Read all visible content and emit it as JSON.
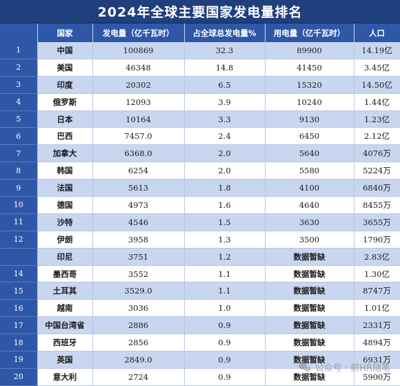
{
  "title": "2024年全球主要国家发电量排名",
  "headers": [
    "国家",
    "发电量（亿千瓦时）",
    "占全球总发电量%",
    "用电量（亿千瓦时）",
    "人口"
  ],
  "rows": [
    {
      "rank": "1",
      "country": "中国",
      "generation": "100869",
      "share": "32.3",
      "consumption": "89900",
      "population": "14.19亿"
    },
    {
      "rank": "2",
      "country": "美国",
      "generation": "46348",
      "share": "14.8",
      "consumption": "41450",
      "population": "3.45亿"
    },
    {
      "rank": "3",
      "country": "印度",
      "generation": "20302",
      "share": "6.5",
      "consumption": "15320",
      "population": "14.50亿"
    },
    {
      "rank": "4",
      "country": "俄罗斯",
      "generation": "12093",
      "share": "3.9",
      "consumption": "10240",
      "population": "1.44亿"
    },
    {
      "rank": "5",
      "country": "日本",
      "generation": "10164",
      "share": "3.3",
      "consumption": "9130",
      "population": "1.23亿"
    },
    {
      "rank": "6",
      "country": "巴西",
      "generation": "7457.0",
      "share": "2.4",
      "consumption": "6450",
      "population": "2.12亿"
    },
    {
      "rank": "7",
      "country": "加拿大",
      "generation": "6368.0",
      "share": "2.0",
      "consumption": "5640",
      "population": "4076万"
    },
    {
      "rank": "8",
      "country": "韩国",
      "generation": "6254",
      "share": "2.0",
      "consumption": "5580",
      "population": "5224万"
    },
    {
      "rank": "9",
      "country": "法国",
      "generation": "5613",
      "share": "1.8",
      "consumption": "4100",
      "population": "6840万"
    },
    {
      "rank": "10",
      "country": "德国",
      "generation": "4973",
      "share": "1.6",
      "consumption": "4640",
      "population": "8455万"
    },
    {
      "rank": "11",
      "country": "沙特",
      "generation": "4546",
      "share": "1.5",
      "consumption": "3630",
      "population": "3655万"
    },
    {
      "rank": "12",
      "country": "伊朗",
      "generation": "3958",
      "share": "1.3",
      "consumption": "3500",
      "population": "1790万"
    },
    {
      "rank": "",
      "country": "印尼",
      "generation": "3751",
      "share": "1.2",
      "consumption": "数据暂缺",
      "population": "2.83亿"
    },
    {
      "rank": "14",
      "country": "墨西哥",
      "generation": "3552",
      "share": "1.1",
      "consumption": "数据暂缺",
      "population": "1.30亿"
    },
    {
      "rank": "15",
      "country": "土耳其",
      "generation": "3529.0",
      "share": "1.1",
      "consumption": "数据暂缺",
      "population": "8747万"
    },
    {
      "rank": "16",
      "country": "越南",
      "generation": "3036",
      "share": "1.0",
      "consumption": "数据暂缺",
      "population": "1.01亿"
    },
    {
      "rank": "17",
      "country": "中国台湾省",
      "generation": "2886",
      "share": "0.9",
      "consumption": "数据暂缺",
      "population": "2331万"
    },
    {
      "rank": "18",
      "country": "西班牙",
      "generation": "2856",
      "share": "0.9",
      "consumption": "数据暂缺",
      "population": "4894万"
    },
    {
      "rank": "19",
      "country": "英国",
      "generation": "2849.0",
      "share": "0.9",
      "consumption": "数据暂缺",
      "population": "6931万"
    },
    {
      "rank": "20",
      "country": "意大利",
      "generation": "2724",
      "share": "0.9",
      "consumption": "数据暂缺",
      "population": "5900万"
    }
  ],
  "watermark": "公众号 · 前HR随笔",
  "colors": {
    "header": "#2f57a8",
    "title": "#1f3f7d",
    "stripe": "#c9d6ef"
  }
}
